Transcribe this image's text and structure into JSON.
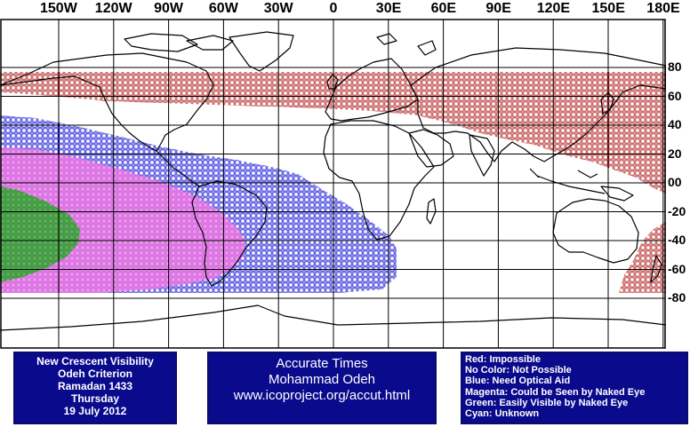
{
  "map": {
    "longitude_labels": [
      "150W",
      "120W",
      "90W",
      "60W",
      "30W",
      "0",
      "30E",
      "60E",
      "90E",
      "120E",
      "150E",
      "180E"
    ],
    "latitude_labels": [
      "80",
      "60",
      "40",
      "20",
      "00",
      "-20",
      "-40",
      "-60",
      "-80"
    ],
    "longitude_degrees": [
      -150,
      -120,
      -90,
      -60,
      -30,
      0,
      30,
      60,
      90,
      120,
      150,
      180
    ],
    "latitude_degrees": [
      80,
      60,
      40,
      20,
      0,
      -20,
      -40,
      -60,
      -80
    ],
    "colors": {
      "red": "#b22222",
      "blue": "#1a1ad6",
      "magenta": "#e25ee8",
      "green": "#2e8b2e",
      "grid": "#000000",
      "land": "#000000"
    }
  },
  "panels": {
    "left": {
      "line1": "New Crescent Visibility",
      "line2": "Odeh Criterion",
      "line3": "Ramadan 1433",
      "line4": "Thursday",
      "line5": "19 July 2012"
    },
    "center": {
      "line1": "Accurate Times",
      "line2": "Mohammad Odeh",
      "line3": "www.icoproject.org/accut.html"
    },
    "legend": {
      "red": "Red: Impossible",
      "none": "No Color: Not Possible",
      "blue": "Blue: Need Optical Aid",
      "magenta": "Magenta: Could be Seen by Naked Eye",
      "green": "Green: Easily Visible by Naked Eye",
      "cyan": "Cyan: Unknown"
    }
  }
}
